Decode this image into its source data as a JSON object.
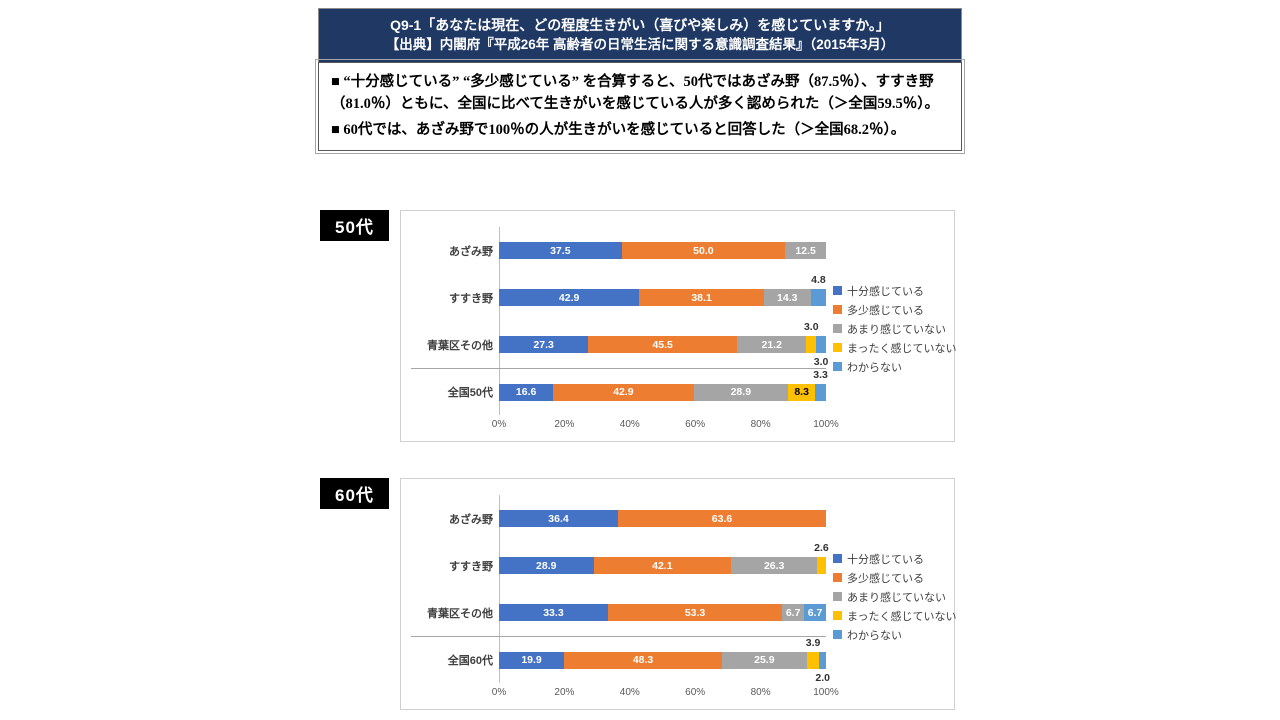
{
  "header": {
    "line1": "Q9-1「あなたは現在、どの程度生きがい（喜びや楽しみ）を感じていますか。」",
    "line2": "【出典】内閣府『平成26年 高齢者の日常生活に関する意識調査結果』（2015年3月）"
  },
  "summary": {
    "bullet1": "■ “十分感じている” “多少感じている” を合算すると、50代ではあざみ野（87.5％）、すすき野（81.0％）ともに、全国に比べて生きがいを感じている人が多く認められた（＞全国59.5％）。",
    "bullet2": "■ 60代では、あざみ野で100％の人が生きがいを感じていると回答した（＞全国68.2％）。"
  },
  "colors": {
    "header_bg": "#1F3864",
    "tag_bg": "#000000",
    "series_blue": "#4472C4",
    "series_orange": "#ED7D31",
    "series_gray": "#A5A5A5",
    "series_yellow": "#FFC000",
    "series_lightblue": "#5B9BD5"
  },
  "chart_data": [
    {
      "type": "bar",
      "stacked": true,
      "orientation": "horizontal",
      "title": "50代",
      "categories": [
        "あざみ野",
        "すすき野",
        "青葉区その他",
        "全国50代"
      ],
      "series": [
        {
          "name": "十分感じている",
          "color": "#4472C4",
          "label_color": "#ffffff",
          "values": [
            37.5,
            42.9,
            27.3,
            16.6
          ]
        },
        {
          "name": "多少感じている",
          "color": "#ED7D31",
          "label_color": "#ffffff",
          "values": [
            50.0,
            38.1,
            45.5,
            42.9
          ]
        },
        {
          "name": "あまり感じていない",
          "color": "#A5A5A5",
          "label_color": "#ffffff",
          "values": [
            12.5,
            14.3,
            21.2,
            28.9
          ]
        },
        {
          "name": "まったく感じていない",
          "color": "#FFC000",
          "label_color": "#000000",
          "values": [
            0,
            0,
            3.0,
            8.3
          ]
        },
        {
          "name": "わからない",
          "color": "#5B9BD5",
          "label_color": "#ffffff",
          "values": [
            0,
            4.8,
            3.0,
            3.3
          ]
        }
      ],
      "x_ticks": [
        "0%",
        "20%",
        "40%",
        "60%",
        "80%",
        "100%"
      ],
      "xlim": [
        0,
        100
      ],
      "legend_position": "right",
      "grid": false
    },
    {
      "type": "bar",
      "stacked": true,
      "orientation": "horizontal",
      "title": "60代",
      "categories": [
        "あざみ野",
        "すすき野",
        "青葉区その他",
        "全国60代"
      ],
      "series": [
        {
          "name": "十分感じている",
          "color": "#4472C4",
          "label_color": "#ffffff",
          "values": [
            36.4,
            28.9,
            33.3,
            19.9
          ]
        },
        {
          "name": "多少感じている",
          "color": "#ED7D31",
          "label_color": "#ffffff",
          "values": [
            63.6,
            42.1,
            53.3,
            48.3
          ]
        },
        {
          "name": "あまり感じていない",
          "color": "#A5A5A5",
          "label_color": "#ffffff",
          "values": [
            0,
            26.3,
            6.7,
            25.9
          ]
        },
        {
          "name": "まったく感じていない",
          "color": "#FFC000",
          "label_color": "#000000",
          "values": [
            0,
            2.6,
            0,
            3.9
          ]
        },
        {
          "name": "わからない",
          "color": "#5B9BD5",
          "label_color": "#ffffff",
          "values": [
            0,
            0,
            6.7,
            2.0
          ]
        }
      ],
      "x_ticks": [
        "0%",
        "20%",
        "40%",
        "60%",
        "80%",
        "100%"
      ],
      "xlim": [
        0,
        100
      ],
      "legend_position": "right",
      "grid": false
    }
  ]
}
